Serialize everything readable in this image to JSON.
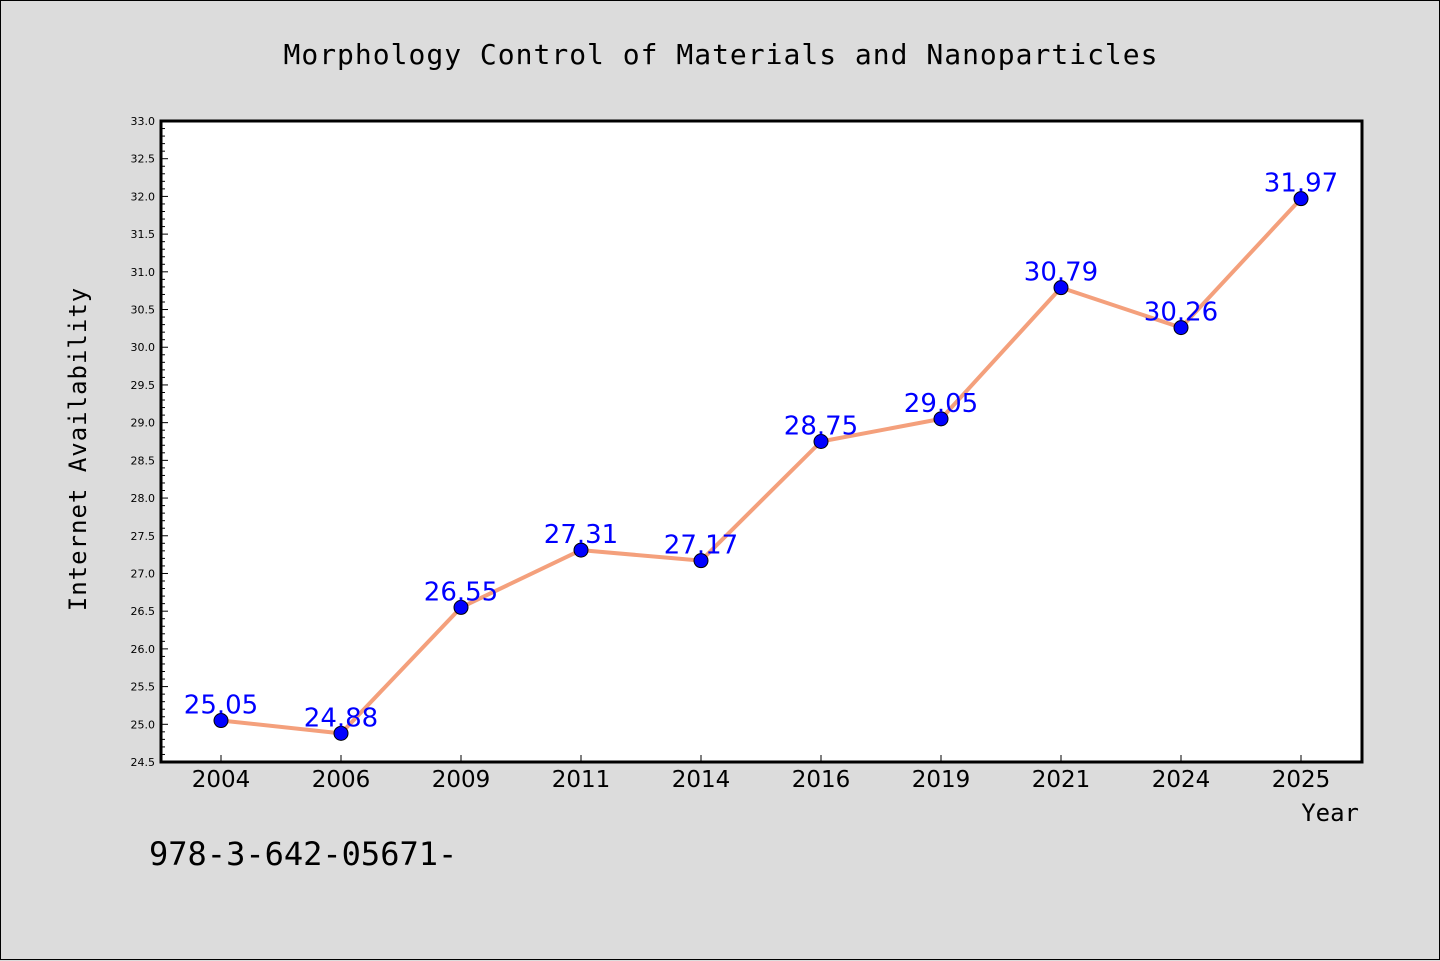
{
  "chart_data": {
    "type": "line",
    "title": "Morphology Control of Materials and Nanoparticles",
    "xlabel": "Year",
    "ylabel": "Internet Availability",
    "categories": [
      "2004",
      "2006",
      "2009",
      "2011",
      "2014",
      "2016",
      "2019",
      "2021",
      "2024",
      "2025"
    ],
    "series": [
      {
        "values": [
          25.05,
          24.88,
          26.55,
          27.31,
          27.17,
          28.75,
          29.05,
          30.79,
          30.26,
          31.97
        ]
      }
    ],
    "data_labels": [
      "25.05",
      "24.88",
      "26.55",
      "27.31",
      "27.17",
      "28.75",
      "29.05",
      "30.79",
      "30.26",
      "31.97"
    ],
    "ylim": [
      24.5,
      33.0
    ],
    "yticks": [
      "24.5",
      "25.0",
      "25.5",
      "26.0",
      "26.5",
      "27.0",
      "27.5",
      "28.0",
      "28.5",
      "29.0",
      "29.5",
      "30.0",
      "30.5",
      "31.0",
      "31.5",
      "32.0",
      "32.5",
      "33.0"
    ],
    "grid": false,
    "colors": {
      "line": "#f4a07c",
      "marker": "#0000ff",
      "label": "#0000ff",
      "background": "#dcdcdc",
      "plot_bg": "#ffffff"
    },
    "annotation": "978-3-642-05671-"
  }
}
